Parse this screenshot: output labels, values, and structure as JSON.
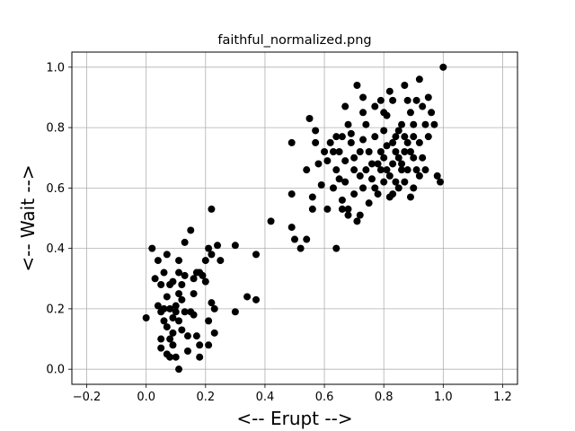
{
  "chart_data": {
    "type": "scatter",
    "title": "faithful_normalized.png",
    "xlabel": "<-- Erupt -->",
    "ylabel": "<-- Wait -->",
    "xlim": [
      -0.25,
      1.25
    ],
    "ylim": [
      -0.05,
      1.05
    ],
    "xticks": [
      -0.2,
      0.0,
      0.2,
      0.4,
      0.6,
      0.8,
      1.0,
      1.2
    ],
    "xtick_labels": [
      "−0.2",
      "0.0",
      "0.2",
      "0.4",
      "0.6",
      "0.8",
      "1.0",
      "1.2"
    ],
    "yticks": [
      0.0,
      0.2,
      0.4,
      0.6,
      0.8,
      1.0
    ],
    "ytick_labels": [
      "0.0",
      "0.2",
      "0.4",
      "0.6",
      "0.8",
      "1.0"
    ],
    "grid": true,
    "marker_color": "#000000",
    "points": [
      [
        0.0,
        0.17
      ],
      [
        0.02,
        0.4
      ],
      [
        0.03,
        0.3
      ],
      [
        0.04,
        0.21
      ],
      [
        0.04,
        0.36
      ],
      [
        0.05,
        0.28
      ],
      [
        0.05,
        0.19
      ],
      [
        0.05,
        0.1
      ],
      [
        0.05,
        0.07
      ],
      [
        0.06,
        0.16
      ],
      [
        0.06,
        0.32
      ],
      [
        0.06,
        0.2
      ],
      [
        0.07,
        0.38
      ],
      [
        0.07,
        0.24
      ],
      [
        0.07,
        0.14
      ],
      [
        0.07,
        0.05
      ],
      [
        0.08,
        0.2
      ],
      [
        0.08,
        0.28
      ],
      [
        0.08,
        0.1
      ],
      [
        0.08,
        0.04
      ],
      [
        0.09,
        0.29
      ],
      [
        0.09,
        0.17
      ],
      [
        0.09,
        0.12
      ],
      [
        0.09,
        0.08
      ],
      [
        0.1,
        0.04
      ],
      [
        0.1,
        0.19
      ],
      [
        0.1,
        0.21
      ],
      [
        0.11,
        0.25
      ],
      [
        0.11,
        0.32
      ],
      [
        0.11,
        0.36
      ],
      [
        0.11,
        0.16
      ],
      [
        0.11,
        0.0
      ],
      [
        0.12,
        0.28
      ],
      [
        0.12,
        0.23
      ],
      [
        0.12,
        0.13
      ],
      [
        0.13,
        0.42
      ],
      [
        0.13,
        0.31
      ],
      [
        0.13,
        0.19
      ],
      [
        0.14,
        0.11
      ],
      [
        0.14,
        0.06
      ],
      [
        0.15,
        0.46
      ],
      [
        0.15,
        0.19
      ],
      [
        0.16,
        0.3
      ],
      [
        0.16,
        0.25
      ],
      [
        0.16,
        0.18
      ],
      [
        0.17,
        0.32
      ],
      [
        0.17,
        0.11
      ],
      [
        0.18,
        0.08
      ],
      [
        0.18,
        0.04
      ],
      [
        0.18,
        0.32
      ],
      [
        0.19,
        0.31
      ],
      [
        0.2,
        0.36
      ],
      [
        0.2,
        0.29
      ],
      [
        0.21,
        0.4
      ],
      [
        0.21,
        0.16
      ],
      [
        0.21,
        0.08
      ],
      [
        0.22,
        0.53
      ],
      [
        0.22,
        0.38
      ],
      [
        0.22,
        0.22
      ],
      [
        0.23,
        0.2
      ],
      [
        0.23,
        0.12
      ],
      [
        0.24,
        0.41
      ],
      [
        0.25,
        0.36
      ],
      [
        0.3,
        0.41
      ],
      [
        0.3,
        0.19
      ],
      [
        0.34,
        0.24
      ],
      [
        0.37,
        0.38
      ],
      [
        0.37,
        0.23
      ],
      [
        0.42,
        0.49
      ],
      [
        0.49,
        0.75
      ],
      [
        0.49,
        0.58
      ],
      [
        0.49,
        0.47
      ],
      [
        0.5,
        0.43
      ],
      [
        0.52,
        0.4
      ],
      [
        0.54,
        0.66
      ],
      [
        0.54,
        0.43
      ],
      [
        0.55,
        0.83
      ],
      [
        0.56,
        0.57
      ],
      [
        0.56,
        0.53
      ],
      [
        0.57,
        0.79
      ],
      [
        0.57,
        0.75
      ],
      [
        0.58,
        0.68
      ],
      [
        0.59,
        0.61
      ],
      [
        0.6,
        0.72
      ],
      [
        0.61,
        0.69
      ],
      [
        0.61,
        0.53
      ],
      [
        0.62,
        0.75
      ],
      [
        0.63,
        0.72
      ],
      [
        0.63,
        0.6
      ],
      [
        0.64,
        0.77
      ],
      [
        0.64,
        0.66
      ],
      [
        0.64,
        0.4
      ],
      [
        0.65,
        0.72
      ],
      [
        0.65,
        0.63
      ],
      [
        0.66,
        0.77
      ],
      [
        0.66,
        0.56
      ],
      [
        0.66,
        0.53
      ],
      [
        0.67,
        0.87
      ],
      [
        0.67,
        0.69
      ],
      [
        0.67,
        0.62
      ],
      [
        0.68,
        0.81
      ],
      [
        0.68,
        0.53
      ],
      [
        0.68,
        0.51
      ],
      [
        0.69,
        0.78
      ],
      [
        0.69,
        0.75
      ],
      [
        0.7,
        0.7
      ],
      [
        0.7,
        0.66
      ],
      [
        0.7,
        0.58
      ],
      [
        0.71,
        0.94
      ],
      [
        0.71,
        0.49
      ],
      [
        0.72,
        0.72
      ],
      [
        0.72,
        0.64
      ],
      [
        0.72,
        0.51
      ],
      [
        0.73,
        0.9
      ],
      [
        0.73,
        0.85
      ],
      [
        0.73,
        0.76
      ],
      [
        0.73,
        0.6
      ],
      [
        0.74,
        0.81
      ],
      [
        0.74,
        0.66
      ],
      [
        0.75,
        0.72
      ],
      [
        0.75,
        0.55
      ],
      [
        0.76,
        0.68
      ],
      [
        0.76,
        0.63
      ],
      [
        0.77,
        0.87
      ],
      [
        0.77,
        0.77
      ],
      [
        0.77,
        0.6
      ],
      [
        0.78,
        0.68
      ],
      [
        0.78,
        0.58
      ],
      [
        0.79,
        0.89
      ],
      [
        0.79,
        0.72
      ],
      [
        0.79,
        0.66
      ],
      [
        0.8,
        0.85
      ],
      [
        0.8,
        0.79
      ],
      [
        0.8,
        0.7
      ],
      [
        0.8,
        0.62
      ],
      [
        0.81,
        0.84
      ],
      [
        0.81,
        0.74
      ],
      [
        0.81,
        0.66
      ],
      [
        0.82,
        0.92
      ],
      [
        0.82,
        0.64
      ],
      [
        0.82,
        0.57
      ],
      [
        0.83,
        0.89
      ],
      [
        0.83,
        0.75
      ],
      [
        0.83,
        0.68
      ],
      [
        0.83,
        0.58
      ],
      [
        0.84,
        0.77
      ],
      [
        0.84,
        0.72
      ],
      [
        0.84,
        0.62
      ],
      [
        0.85,
        0.79
      ],
      [
        0.85,
        0.7
      ],
      [
        0.85,
        0.6
      ],
      [
        0.86,
        0.81
      ],
      [
        0.86,
        0.66
      ],
      [
        0.86,
        0.68
      ],
      [
        0.87,
        0.94
      ],
      [
        0.87,
        0.77
      ],
      [
        0.87,
        0.72
      ],
      [
        0.87,
        0.62
      ],
      [
        0.88,
        0.89
      ],
      [
        0.88,
        0.75
      ],
      [
        0.88,
        0.66
      ],
      [
        0.89,
        0.85
      ],
      [
        0.89,
        0.72
      ],
      [
        0.89,
        0.57
      ],
      [
        0.9,
        0.81
      ],
      [
        0.9,
        0.77
      ],
      [
        0.9,
        0.7
      ],
      [
        0.9,
        0.6
      ],
      [
        0.91,
        0.89
      ],
      [
        0.91,
        0.66
      ],
      [
        0.92,
        0.96
      ],
      [
        0.92,
        0.75
      ],
      [
        0.92,
        0.64
      ],
      [
        0.93,
        0.87
      ],
      [
        0.93,
        0.7
      ],
      [
        0.94,
        0.81
      ],
      [
        0.94,
        0.66
      ],
      [
        0.95,
        0.9
      ],
      [
        0.95,
        0.77
      ],
      [
        0.96,
        0.85
      ],
      [
        0.97,
        0.81
      ],
      [
        0.98,
        0.64
      ],
      [
        0.99,
        0.62
      ],
      [
        1.0,
        1.0
      ]
    ]
  }
}
